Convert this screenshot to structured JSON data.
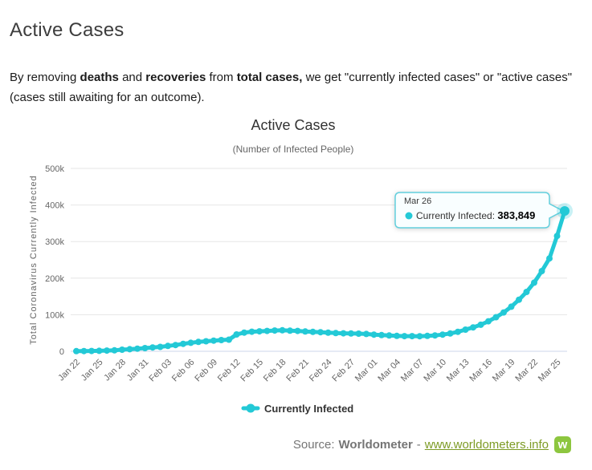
{
  "page": {
    "title": "Active Cases",
    "intro_segments": [
      {
        "text": "By removing ",
        "bold": false
      },
      {
        "text": "deaths",
        "bold": true
      },
      {
        "text": " and ",
        "bold": false
      },
      {
        "text": "recoveries",
        "bold": true
      },
      {
        "text": " from ",
        "bold": false
      },
      {
        "text": "total cases,",
        "bold": true
      },
      {
        "text": " we get \"currently infected cases\" or \"active cases\" (cases still awaiting for an outcome).",
        "bold": false
      }
    ]
  },
  "theme": {
    "accent": "#23c9d6",
    "gridline": "#e6e6e6",
    "axis_line": "#ccd6eb",
    "link_green": "#7d9b25",
    "logo_green": "#8dc63f",
    "tooltip_border": "#62cfdd",
    "tooltip_bg": "#f9feff"
  },
  "chart_data": {
    "type": "line",
    "title": "Active Cases",
    "subtitle": "(Number of Infected People)",
    "ylabel": "Total Coronavirus Currently Infected",
    "xlabel": "",
    "ylim": [
      0,
      500000
    ],
    "ytick_labels": [
      "0",
      "100k",
      "200k",
      "300k",
      "400k",
      "500k"
    ],
    "grid": "horizontal",
    "legend_position": "bottom",
    "xtick_every": 3,
    "categories": [
      "Jan 22",
      "Jan 23",
      "Jan 24",
      "Jan 25",
      "Jan 26",
      "Jan 27",
      "Jan 28",
      "Jan 29",
      "Jan 30",
      "Jan 31",
      "Feb 01",
      "Feb 02",
      "Feb 03",
      "Feb 04",
      "Feb 05",
      "Feb 06",
      "Feb 07",
      "Feb 08",
      "Feb 09",
      "Feb 10",
      "Feb 11",
      "Feb 12",
      "Feb 13",
      "Feb 14",
      "Feb 15",
      "Feb 16",
      "Feb 17",
      "Feb 18",
      "Feb 19",
      "Feb 20",
      "Feb 21",
      "Feb 22",
      "Feb 23",
      "Feb 24",
      "Feb 25",
      "Feb 26",
      "Feb 27",
      "Feb 28",
      "Feb 29",
      "Mar 01",
      "Mar 02",
      "Mar 03",
      "Mar 04",
      "Mar 05",
      "Mar 06",
      "Mar 07",
      "Mar 08",
      "Mar 09",
      "Mar 10",
      "Mar 11",
      "Mar 12",
      "Mar 13",
      "Mar 14",
      "Mar 15",
      "Mar 16",
      "Mar 17",
      "Mar 18",
      "Mar 19",
      "Mar 20",
      "Mar 21",
      "Mar 22",
      "Mar 23",
      "Mar 24",
      "Mar 25",
      "Mar 26"
    ],
    "series": [
      {
        "name": "Currently Infected",
        "color": "#23c9d6",
        "values": [
          510,
          609,
          879,
          1297,
          1972,
          2700,
          4409,
          5725,
          7160,
          8778,
          10423,
          12038,
          14605,
          17171,
          20440,
          23192,
          25746,
          27313,
          29269,
          30671,
          31902,
          46086,
          51174,
          53418,
          54611,
          55764,
          56873,
          57416,
          56303,
          55704,
          54227,
          53137,
          52111,
          50935,
          49856,
          49204,
          48588,
          48228,
          47453,
          45560,
          44198,
          43235,
          42068,
          41480,
          41391,
          41332,
          42006,
          43402,
          45531,
          48715,
          53226,
          59113,
          65286,
          72697,
          81961,
          93136,
          106155,
          121863,
          141113,
          162367,
          187706,
          219252,
          253851,
          315333,
          383849
        ]
      }
    ],
    "annotation": {
      "point_index": 64,
      "date_label": "Mar 26",
      "series_label": "Currently Infected",
      "value_text": "383,849"
    }
  },
  "footer": {
    "source_prefix": "Source:",
    "source_name": "Worldometer",
    "separator": "-",
    "link_text": "www.worldometers.info",
    "logo_text": "w"
  }
}
